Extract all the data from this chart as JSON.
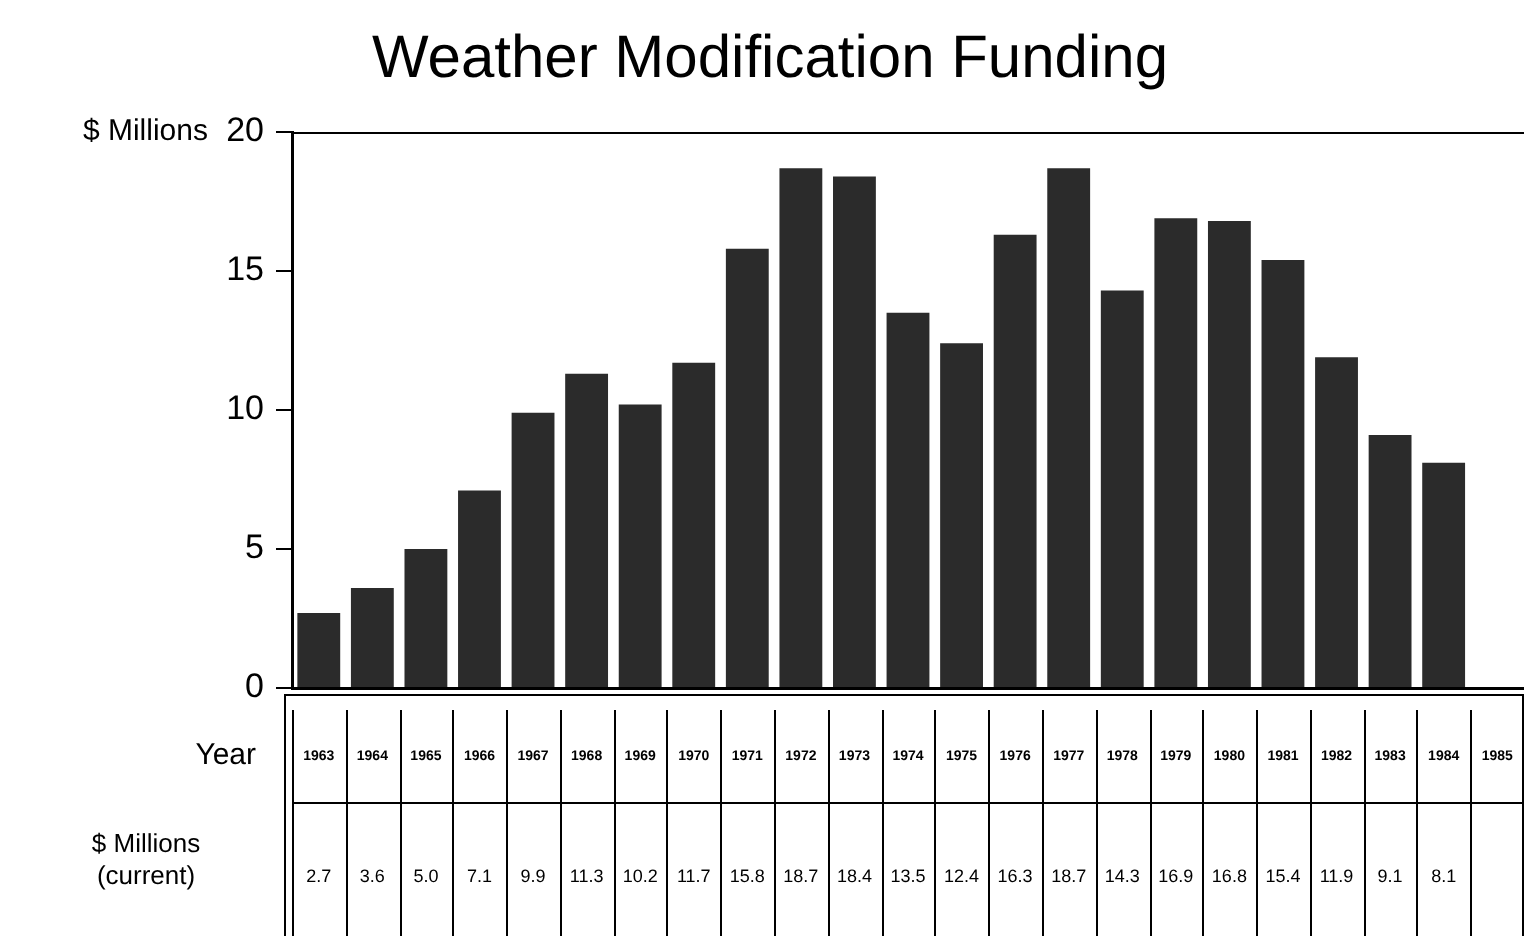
{
  "chart_data": {
    "type": "bar",
    "title": "Weather Modification Funding",
    "ylabel": "$ Millions",
    "xlabel": "Year",
    "annotations": [
      "$ Millions (current)"
    ],
    "categories": [
      "1963",
      "1964",
      "1965",
      "1966",
      "1967",
      "1968",
      "1969",
      "1970",
      "1971",
      "1972",
      "1973",
      "1974",
      "1975",
      "1976",
      "1977",
      "1978",
      "1979",
      "1980",
      "1981",
      "1982",
      "1983",
      "1984",
      "1985"
    ],
    "values": [
      2.7,
      3.6,
      5.0,
      7.1,
      9.9,
      11.3,
      10.2,
      11.7,
      15.8,
      18.7,
      18.4,
      13.5,
      12.4,
      16.3,
      18.7,
      14.3,
      16.9,
      16.8,
      15.4,
      11.9,
      9.1,
      8.1,
      null
    ],
    "value_labels": [
      "2.7",
      "3.6",
      "5.0",
      "7.1",
      "9.9",
      "11.3",
      "10.2",
      "11.7",
      "15.8",
      "18.7",
      "18.4",
      "13.5",
      "12.4",
      "16.3",
      "18.7",
      "14.3",
      "16.9",
      "16.8",
      "15.4",
      "11.9",
      "9.1",
      "8.1",
      null
    ],
    "color": "#2b2b2b",
    "ylim": [
      0,
      20
    ],
    "yticks": [
      0,
      5,
      10,
      15,
      20
    ],
    "grid": false,
    "legend": false
  }
}
